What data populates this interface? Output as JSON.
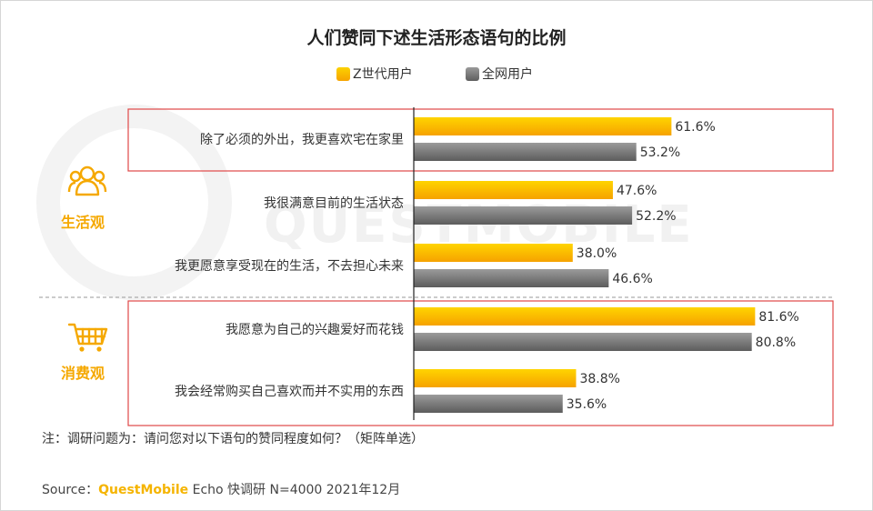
{
  "title": "人们赞同下述生活形态语句的比例",
  "legend": [
    {
      "label": "Z世代用户",
      "color": "#f7b500"
    },
    {
      "label": "全网用户",
      "color": "#7a7a7a"
    }
  ],
  "groups": {
    "lifestyle": "生活观",
    "consumption": "消费观"
  },
  "icons": {
    "lifestyle": "people-group-icon",
    "consumption": "shopping-cart-icon"
  },
  "watermark": "QUESTMOBILE",
  "note": "注：调研问题为：请问您对以下语句的赞同程度如何？（矩阵单选）",
  "source": {
    "prefix": "Source：",
    "brand": "QuestMobile",
    "rest": " Echo 快调研 N=4000 2021年12月"
  },
  "chart_data": {
    "type": "bar",
    "orientation": "horizontal",
    "categories": [
      "除了必须的外出，我更喜欢宅在家里",
      "我很满意目前的生活状态",
      "我更愿意享受现在的生活，不去担心未来",
      "我愿意为自己的兴趣爱好而花钱",
      "我会经常购买自己喜欢而并不实用的东西"
    ],
    "series": [
      {
        "name": "Z世代用户",
        "values": [
          61.6,
          47.6,
          38.0,
          81.6,
          38.8
        ],
        "color": "#f7b500"
      },
      {
        "name": "全网用户",
        "values": [
          53.2,
          52.2,
          46.6,
          80.8,
          35.6
        ],
        "color": "#7a7a7a"
      }
    ],
    "value_labels": [
      [
        "61.6%",
        "47.6%",
        "38.0%",
        "81.6%",
        "38.8%"
      ],
      [
        "53.2%",
        "52.2%",
        "46.6%",
        "80.8%",
        "35.6%"
      ]
    ],
    "highlighted_categories": [
      0,
      3,
      4
    ],
    "xlim": [
      0,
      100
    ],
    "legend_position": "top-center"
  }
}
